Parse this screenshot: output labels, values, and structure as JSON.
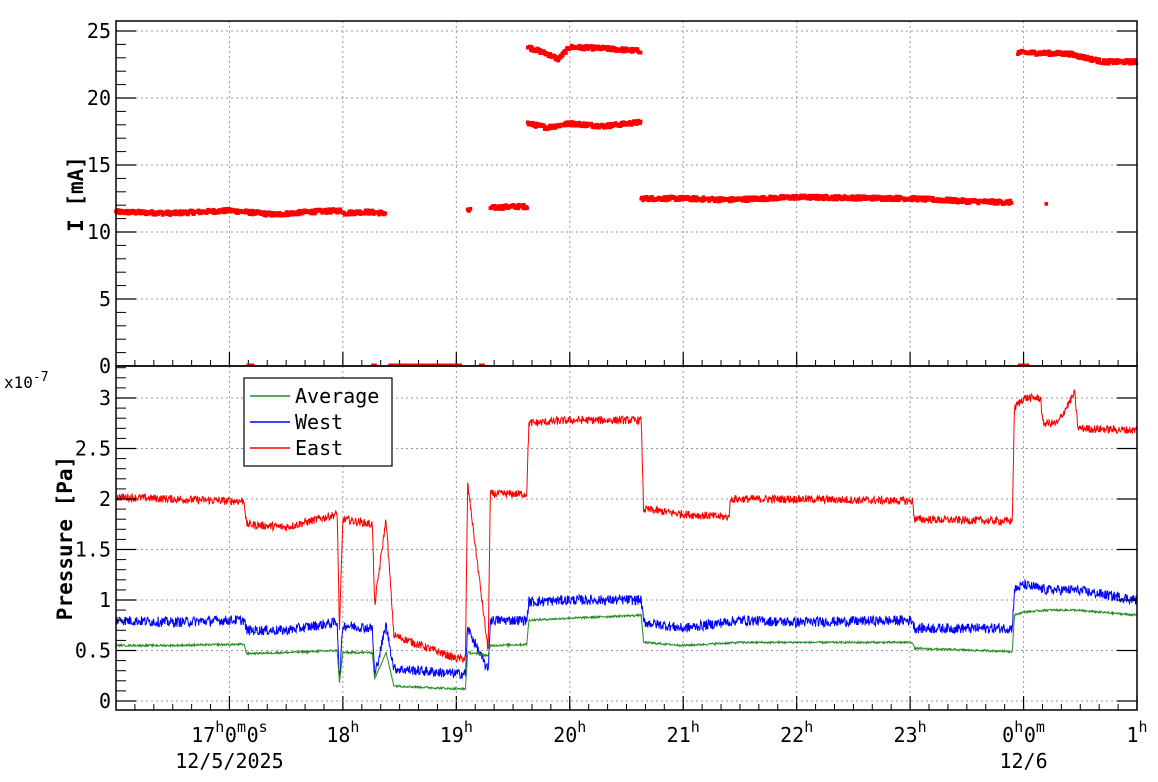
{
  "chart_data": [
    {
      "type": "scatter",
      "panel": "current",
      "ylabel": "I [mA]",
      "ylim": [
        0,
        26
      ],
      "yticks": [
        "0",
        "5",
        "10",
        "15",
        "20",
        "25"
      ],
      "xlim_hours": [
        16.0,
        25.0
      ],
      "grid": true,
      "series": [
        {
          "color": "#ff0000",
          "segments": [
            {
              "x": [
                16.0,
                16.5,
                17.0,
                17.4,
                17.7,
                18.0
              ],
              "y": [
                11.5,
                11.4,
                11.6,
                11.3,
                11.5,
                11.6
              ]
            },
            {
              "x": [
                18.0,
                18.2,
                18.38
              ],
              "y": [
                11.4,
                11.5,
                11.4
              ]
            },
            {
              "x": [
                19.1,
                19.13
              ],
              "y": [
                11.6,
                11.6
              ]
            },
            {
              "x": [
                19.3,
                19.5,
                19.63
              ],
              "y": [
                11.8,
                11.9,
                11.9
              ]
            },
            {
              "x": [
                19.63,
                19.8,
                19.9,
                20.0,
                20.3,
                20.63
              ],
              "y": [
                23.8,
                23.3,
                22.9,
                23.8,
                23.7,
                23.5
              ]
            },
            {
              "x": [
                19.63,
                19.8,
                20.0,
                20.3,
                20.63
              ],
              "y": [
                18.1,
                17.8,
                18.1,
                17.9,
                18.2
              ]
            },
            {
              "x": [
                20.63,
                21.0,
                21.4,
                22.0,
                23.0,
                23.5,
                23.9
              ],
              "y": [
                12.5,
                12.5,
                12.4,
                12.6,
                12.5,
                12.3,
                12.2
              ]
            },
            {
              "x": [
                24.2
              ],
              "y": [
                12.1
              ]
            },
            {
              "x": [
                23.95,
                24.4,
                24.7,
                25.0
              ],
              "y": [
                23.4,
                23.3,
                22.7,
                22.7
              ]
            }
          ]
        }
      ]
    },
    {
      "type": "line",
      "panel": "pressure",
      "ylabel": "Pressure [Pa]",
      "y_exponent": "x10",
      "y_exponent_power": "-7",
      "ylim": [
        0,
        3.3
      ],
      "yticks": [
        "0",
        "0.5",
        "1",
        "1.5",
        "2",
        "2.5",
        "3"
      ],
      "xlim_hours": [
        16.0,
        25.0
      ],
      "grid": true,
      "legend_placement": "top-left",
      "series": [
        {
          "name": "Average",
          "color": "#228b22",
          "x": [
            16.0,
            16.5,
            17.0,
            17.13,
            17.15,
            17.5,
            17.95,
            17.97,
            18.0,
            18.26,
            18.28,
            18.38,
            18.45,
            19.0,
            19.08,
            19.1,
            19.28,
            19.3,
            19.62,
            19.64,
            20.0,
            20.63,
            20.65,
            21.0,
            21.5,
            22.0,
            23.02,
            23.04,
            23.9,
            23.92,
            24.0,
            24.2,
            24.45,
            25.0
          ],
          "y": [
            0.55,
            0.55,
            0.56,
            0.56,
            0.47,
            0.48,
            0.5,
            0.18,
            0.48,
            0.48,
            0.22,
            0.48,
            0.15,
            0.12,
            0.12,
            0.48,
            0.45,
            0.55,
            0.56,
            0.8,
            0.82,
            0.85,
            0.58,
            0.55,
            0.58,
            0.58,
            0.58,
            0.52,
            0.49,
            0.85,
            0.88,
            0.9,
            0.9,
            0.85
          ],
          "noise": 0.01
        },
        {
          "name": "West",
          "color": "#0000ff",
          "x": [
            16.0,
            16.5,
            17.0,
            17.13,
            17.15,
            17.5,
            17.95,
            17.97,
            18.0,
            18.26,
            18.28,
            18.38,
            18.45,
            19.0,
            19.08,
            19.1,
            19.28,
            19.3,
            19.62,
            19.64,
            20.0,
            20.63,
            20.65,
            21.0,
            21.5,
            22.0,
            23.02,
            23.04,
            23.9,
            23.92,
            24.0,
            24.2,
            24.45,
            25.0
          ],
          "y": [
            0.8,
            0.78,
            0.8,
            0.8,
            0.7,
            0.7,
            0.78,
            0.2,
            0.75,
            0.72,
            0.25,
            0.75,
            0.32,
            0.27,
            0.27,
            0.72,
            0.3,
            0.8,
            0.8,
            0.98,
            1.0,
            1.0,
            0.78,
            0.72,
            0.8,
            0.78,
            0.8,
            0.72,
            0.72,
            1.1,
            1.15,
            1.1,
            1.1,
            1.0
          ],
          "noise": 0.05
        },
        {
          "name": "East",
          "color": "#ff0000",
          "x": [
            16.0,
            16.5,
            17.0,
            17.13,
            17.15,
            17.5,
            17.95,
            17.97,
            18.0,
            18.26,
            18.28,
            18.38,
            18.45,
            19.0,
            19.08,
            19.1,
            19.28,
            19.3,
            19.62,
            19.64,
            20.0,
            20.63,
            20.65,
            21.0,
            21.4,
            21.42,
            22.0,
            23.02,
            23.04,
            23.9,
            23.92,
            24.0,
            24.15,
            24.17,
            24.3,
            24.45,
            24.48,
            25.0
          ],
          "y": [
            2.02,
            2.0,
            1.98,
            1.98,
            1.75,
            1.72,
            1.85,
            0.7,
            1.8,
            1.75,
            0.95,
            1.8,
            0.65,
            0.42,
            0.42,
            2.15,
            0.5,
            2.05,
            2.05,
            2.75,
            2.78,
            2.78,
            1.9,
            1.85,
            1.82,
            2.0,
            2.0,
            1.98,
            1.8,
            1.78,
            2.9,
            3.0,
            3.0,
            2.75,
            2.75,
            3.05,
            2.7,
            2.68
          ],
          "noise": 0.04
        }
      ]
    }
  ],
  "x_axis": {
    "ticks": [
      {
        "hour": 17,
        "label": "17",
        "sup": "h",
        "label2": "0",
        "sup2": "m",
        "label3": "0",
        "sup3": "s"
      },
      {
        "hour": 18,
        "label": "18",
        "sup": "h"
      },
      {
        "hour": 19,
        "label": "19",
        "sup": "h"
      },
      {
        "hour": 20,
        "label": "20",
        "sup": "h"
      },
      {
        "hour": 21,
        "label": "21",
        "sup": "h"
      },
      {
        "hour": 22,
        "label": "22",
        "sup": "h"
      },
      {
        "hour": 23,
        "label": "23",
        "sup": "h"
      },
      {
        "hour": 24,
        "label": "0",
        "sup": "h",
        "label2": "0",
        "sup2": "m"
      },
      {
        "hour": 25,
        "label": "1",
        "sup": "h"
      }
    ],
    "dates": [
      {
        "hour": 17,
        "label": "12/5/2025"
      },
      {
        "hour": 24,
        "label": "12/6"
      }
    ]
  }
}
